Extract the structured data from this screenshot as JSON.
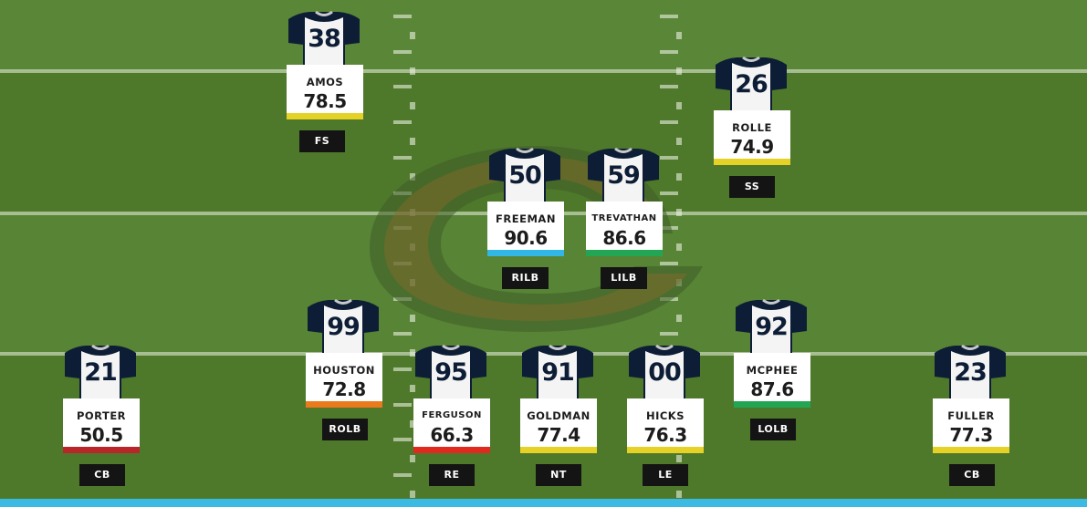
{
  "colors": {
    "field_dark": "#4f7a2c",
    "field_light": "#5a8737",
    "jersey_navy": "#0d1d36",
    "jersey_white": "#f4f4f4",
    "bottom_bar": "#3bbbe4",
    "logo_orange": "#c2562a"
  },
  "logo": "chicago-bears-c-logo",
  "players": [
    {
      "number": "38",
      "name": "AMOS",
      "rating": "78.5",
      "position": "FS",
      "grade_color": "#e6d226"
    },
    {
      "number": "26",
      "name": "ROLLE",
      "rating": "74.9",
      "position": "SS",
      "grade_color": "#e6d226"
    },
    {
      "number": "50",
      "name": "FREEMAN",
      "rating": "90.6",
      "position": "RILB",
      "grade_color": "#31b6e6"
    },
    {
      "number": "59",
      "name": "TREVATHAN",
      "rating": "86.6",
      "position": "LILB",
      "grade_color": "#23a653"
    },
    {
      "number": "99",
      "name": "HOUSTON",
      "rating": "72.8",
      "position": "ROLB",
      "grade_color": "#ea7a1b"
    },
    {
      "number": "92",
      "name": "MCPHEE",
      "rating": "87.6",
      "position": "LOLB",
      "grade_color": "#23a653"
    },
    {
      "number": "21",
      "name": "PORTER",
      "rating": "50.5",
      "position": "CB",
      "grade_color": "#b8262a"
    },
    {
      "number": "95",
      "name": "FERGUSON",
      "rating": "66.3",
      "position": "RE",
      "grade_color": "#e12a1f"
    },
    {
      "number": "91",
      "name": "GOLDMAN",
      "rating": "77.4",
      "position": "NT",
      "grade_color": "#e6d226"
    },
    {
      "number": "00",
      "name": "HICKS",
      "rating": "76.3",
      "position": "LE",
      "grade_color": "#e6d226"
    },
    {
      "number": "23",
      "name": "FULLER",
      "rating": "77.3",
      "position": "CB",
      "grade_color": "#e6d226"
    }
  ]
}
